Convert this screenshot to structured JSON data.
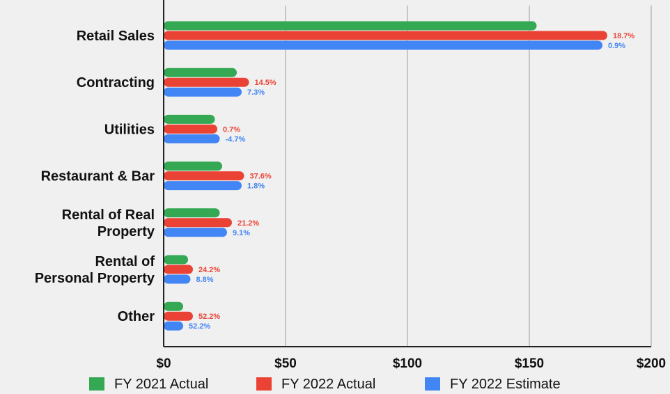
{
  "chart_data": {
    "type": "bar",
    "orientation": "horizontal",
    "categories": [
      [
        "Retail Sales"
      ],
      [
        "Contracting"
      ],
      [
        "Utilities"
      ],
      [
        "Restaurant & Bar"
      ],
      [
        "Rental of Real",
        "Property"
      ],
      [
        "Rental of",
        "Personal Property"
      ],
      [
        "Other"
      ]
    ],
    "series": [
      {
        "name": "FY 2021 Actual",
        "color": "#34a853",
        "values": [
          153,
          30,
          21,
          24,
          23,
          10,
          8
        ],
        "labels": [
          "",
          "",
          "",
          "",
          "",
          "",
          ""
        ]
      },
      {
        "name": "FY 2022 Actual",
        "color": "#ea4335",
        "values": [
          182,
          35,
          22,
          33,
          28,
          12,
          12
        ],
        "labels": [
          "18.7%",
          "14.5%",
          "0.7%",
          "37.6%",
          "21.2%",
          "24.2%",
          "52.2%"
        ]
      },
      {
        "name": "FY 2022 Estimate",
        "color": "#4285f4",
        "values": [
          180,
          32,
          23,
          32,
          26,
          11,
          8
        ],
        "labels": [
          "0.9%",
          "7.3%",
          "-4.7%",
          "1.8%",
          "9.1%",
          "8.8%",
          "52.2%"
        ]
      }
    ],
    "xlim": [
      0,
      200
    ],
    "xticks": [
      0,
      50,
      100,
      150,
      200
    ],
    "xtick_labels": [
      "$0",
      "$50",
      "$100",
      "$150",
      "$200"
    ],
    "grid": true,
    "legend_position": "bottom",
    "title": "",
    "xlabel": "",
    "ylabel": ""
  }
}
